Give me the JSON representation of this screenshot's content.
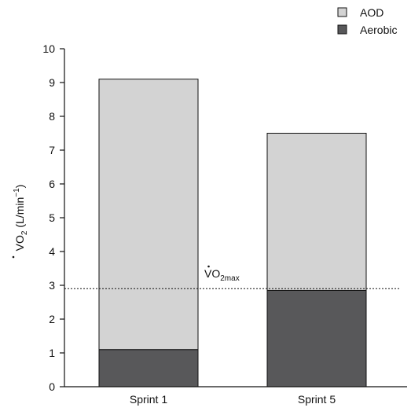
{
  "chart_data": {
    "type": "bar",
    "stacked": true,
    "categories": [
      "Sprint 1",
      "Sprint 5"
    ],
    "series": [
      {
        "name": "Aerobic",
        "values": [
          1.1,
          2.85
        ],
        "color": "#58585a"
      },
      {
        "name": "AOD",
        "values": [
          8.0,
          4.65
        ],
        "color": "#d3d3d3"
      }
    ],
    "totals": [
      9.1,
      7.5
    ],
    "ylim": [
      0,
      10
    ],
    "yticks": [
      "0",
      "1",
      "2",
      "3",
      "4",
      "5",
      "6",
      "7",
      "8",
      "9",
      "10"
    ],
    "ylabel": {
      "main": "VO",
      "sub": "2",
      "unit_open": " (L/min",
      "unit_sup": "−1",
      "unit_close": ")"
    },
    "legend": {
      "placement": "top-right",
      "items": [
        {
          "label": "AOD",
          "color": "#d3d3d3"
        },
        {
          "label": "Aerobic",
          "color": "#58585a"
        }
      ]
    },
    "reference_line": {
      "y": 2.9,
      "style": "dotted",
      "label_main": "VO",
      "label_sub": "2max"
    },
    "grid": false,
    "edge_color": "#111111"
  }
}
